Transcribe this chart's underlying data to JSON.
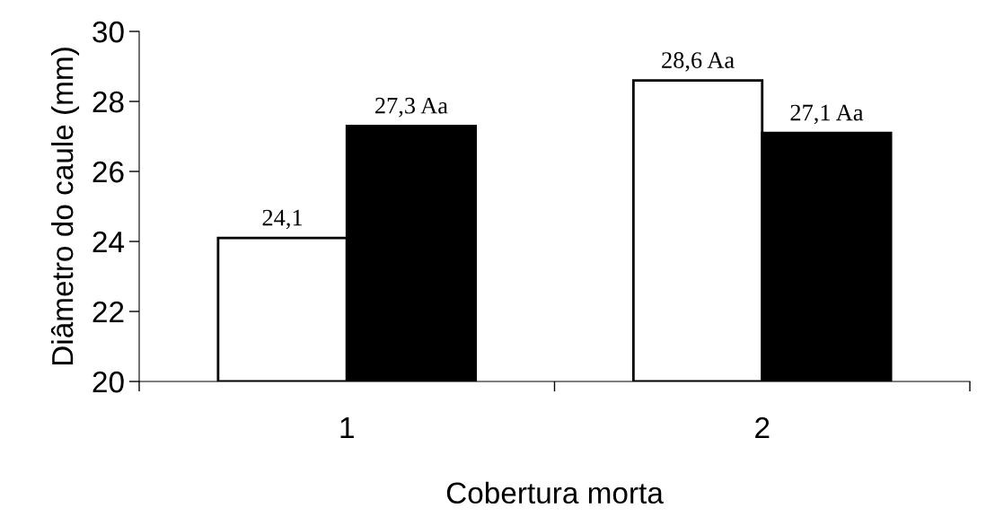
{
  "chart_data": {
    "type": "bar",
    "xlabel": "Cobertura morta",
    "ylabel": "Diâmetro do caule (mm)",
    "categories": [
      "1",
      "2"
    ],
    "series": [
      {
        "color": "#ffffff",
        "values": [
          24.1,
          28.6
        ],
        "value_labels": [
          "24,1",
          "28,6 Aa"
        ]
      },
      {
        "color": "#000000",
        "values": [
          27.3,
          27.1
        ],
        "value_labels": [
          "27,3 Aa",
          "27,1 Aa"
        ]
      }
    ],
    "ylim": [
      20,
      30
    ],
    "yticks": [
      20,
      22,
      24,
      26,
      28,
      30
    ],
    "grid": false,
    "legend": false
  }
}
